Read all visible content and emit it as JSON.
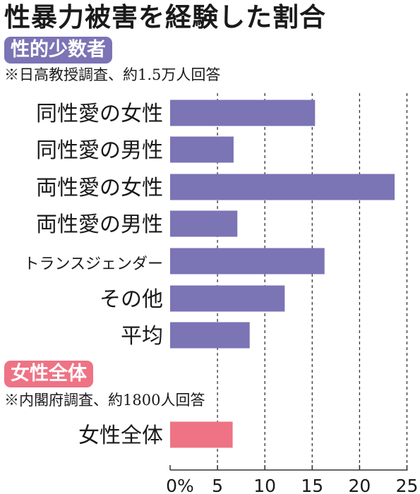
{
  "title": "性暴力被害を経験した割合",
  "colors": {
    "group1": "#7b74b5",
    "group2": "#ee7385",
    "grid": "#333333"
  },
  "chart_data": [
    {
      "type": "bar",
      "orientation": "horizontal",
      "label": "性的少数者",
      "note": "※日高教授調査、約1.5万人回答",
      "categories": [
        "同性愛の女性",
        "同性愛の男性",
        "両性愛の女性",
        "両性愛の男性",
        "トランスジェンダー",
        "その他",
        "平均"
      ],
      "values": [
        15.3,
        6.7,
        23.7,
        7.1,
        16.3,
        12.1,
        8.4
      ]
    },
    {
      "type": "bar",
      "orientation": "horizontal",
      "label": "女性全体",
      "note": "※内閣府調査、約1800人回答",
      "categories": [
        "女性全体"
      ],
      "values": [
        6.6
      ]
    }
  ],
  "x_axis": {
    "min": 0,
    "max": 25,
    "ticks": [
      0,
      5,
      10,
      15,
      20,
      25
    ],
    "tick_labels": [
      "0%",
      "5",
      "10",
      "15",
      "20",
      "25"
    ],
    "grid": "dashed vertical"
  }
}
